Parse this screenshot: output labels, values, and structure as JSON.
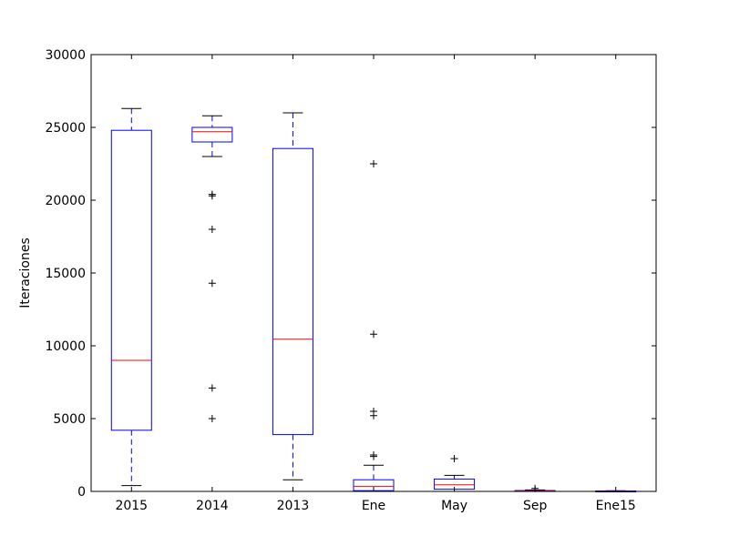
{
  "chart_data": {
    "type": "box",
    "ylabel": "Iteraciones",
    "xlabel": "",
    "ylim": [
      0,
      30000
    ],
    "yticks": [
      0,
      5000,
      10000,
      15000,
      20000,
      25000,
      30000
    ],
    "grid": false,
    "colors": {
      "box": "#0000ff",
      "median": "#ff0000",
      "whisker": "#0000ff",
      "cap": "#000000",
      "flier": "#000000",
      "axis": "#000000"
    },
    "categories": [
      "2015",
      "2014",
      "2013",
      "Ene",
      "May",
      "Sep",
      "Ene15"
    ],
    "boxes": [
      {
        "category": "2015",
        "whislo": 400,
        "q1": 4200,
        "med": 9000,
        "q3": 24800,
        "whishi": 26300,
        "fliers": []
      },
      {
        "category": "2014",
        "whislo": 23000,
        "q1": 24000,
        "med": 24700,
        "q3": 25000,
        "whishi": 25800,
        "fliers": [
          20400,
          20300,
          18000,
          14300,
          7100,
          5000
        ]
      },
      {
        "category": "2013",
        "whislo": 800,
        "q1": 3900,
        "med": 10450,
        "q3": 23550,
        "whishi": 26000,
        "fliers": []
      },
      {
        "category": "Ene",
        "whislo": 0,
        "q1": 50,
        "med": 350,
        "q3": 800,
        "whishi": 1800,
        "fliers": [
          22500,
          10800,
          5500,
          5200,
          2500,
          2400
        ]
      },
      {
        "category": "May",
        "whislo": 0,
        "q1": 150,
        "med": 450,
        "q3": 850,
        "whishi": 1100,
        "fliers": [
          2250
        ]
      },
      {
        "category": "Sep",
        "whislo": 0,
        "q1": 10,
        "med": 30,
        "q3": 60,
        "whishi": 100,
        "fliers": [
          200
        ]
      },
      {
        "category": "Ene15",
        "whislo": 0,
        "q1": 5,
        "med": 15,
        "q3": 30,
        "whishi": 50,
        "fliers": []
      }
    ]
  }
}
